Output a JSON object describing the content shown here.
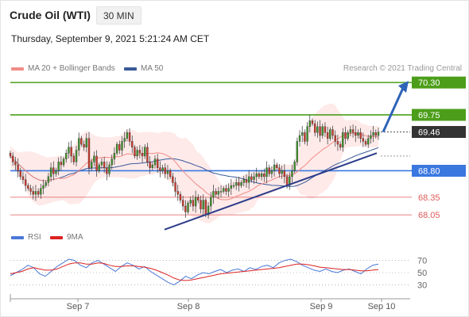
{
  "header": {
    "title": "Crude Oil (WTI)",
    "timeframe": "30 MIN",
    "datetime": "Thursday, September 9, 2021 5:21:24 AM CET"
  },
  "legend": {
    "ma20": {
      "label": "MA 20 + Bollinger Bands",
      "color": "#f08c86"
    },
    "ma50": {
      "label": "MA 50",
      "color": "#3a5a9a"
    },
    "rsi": {
      "label": "RSI",
      "color": "#4a78d8"
    },
    "ma9": {
      "label": "9MA",
      "color": "#dd2222"
    },
    "copyright": "Research © 2021 Trading Central"
  },
  "chart_data": {
    "type": "candlestick",
    "price_range": [
      67.85,
      70.45
    ],
    "x_ticks": [
      "Sep 7",
      "Sep 8",
      "Sep 9",
      "Sep 10"
    ],
    "levels": [
      {
        "value": 70.3,
        "label": "70.30",
        "kind": "target",
        "color": "#4c9e1a"
      },
      {
        "value": 69.75,
        "label": "69.75",
        "kind": "resistance",
        "color": "#4c9e1a"
      },
      {
        "value": 69.46,
        "label": "69.46",
        "kind": "last",
        "color": "#333333"
      },
      {
        "value": 68.8,
        "label": "68.80",
        "kind": "pivot",
        "color": "#3a78e0"
      },
      {
        "value": 68.35,
        "label": "68.35",
        "kind": "support",
        "color": "#e05a5a"
      },
      {
        "value": 68.05,
        "label": "68.05",
        "kind": "support",
        "color": "#e05a5a"
      }
    ],
    "trendline": [
      [
        0.0,
        67.8
      ],
      [
        1.0,
        69.1
      ]
    ],
    "arrow": [
      [
        1.0,
        69.46
      ],
      [
        1.15,
        70.3
      ]
    ],
    "closes": [
      69.05,
      68.95,
      68.9,
      68.8,
      68.7,
      68.65,
      68.55,
      68.5,
      68.45,
      68.4,
      68.45,
      68.4,
      68.5,
      68.55,
      68.6,
      68.7,
      68.85,
      68.75,
      68.8,
      68.95,
      68.9,
      69.0,
      69.1,
      69.2,
      69.05,
      68.95,
      69.15,
      69.35,
      69.25,
      69.2,
      69.35,
      68.85,
      68.95,
      69.05,
      68.8,
      68.9,
      68.95,
      68.85,
      68.75,
      68.9,
      69.0,
      69.1,
      69.25,
      69.15,
      69.3,
      69.35,
      69.45,
      69.3,
      69.2,
      69.05,
      69.15,
      69.1,
      69.05,
      69.2,
      68.95,
      68.85,
      68.9,
      69.0,
      68.85,
      68.8,
      68.85,
      68.75,
      68.8,
      68.7,
      68.6,
      68.45,
      68.4,
      68.3,
      68.2,
      68.1,
      68.25,
      68.3,
      68.2,
      68.35,
      68.3,
      68.15,
      68.3,
      68.05,
      68.2,
      68.35,
      68.45,
      68.4,
      68.45,
      68.45,
      68.5,
      68.45,
      68.5,
      68.55,
      68.55,
      68.6,
      68.55,
      68.6,
      68.65,
      68.6,
      68.7,
      68.65,
      68.7,
      68.75,
      68.7,
      68.75,
      68.7,
      68.85,
      68.75,
      68.8,
      68.9,
      68.85,
      68.75,
      68.8,
      68.7,
      68.55,
      68.7,
      68.8,
      68.95,
      69.3,
      69.4,
      69.45,
      69.3,
      69.55,
      69.65,
      69.6,
      69.45,
      69.55,
      69.4,
      69.55,
      69.45,
      69.35,
      69.5,
      69.4,
      69.3,
      69.25,
      69.2,
      69.45,
      69.35,
      69.45,
      69.5,
      69.45,
      69.4,
      69.45,
      69.35,
      69.3,
      69.25,
      69.35,
      69.4,
      69.45,
      69.4,
      69.46
    ],
    "rsi": {
      "range": [
        15,
        85
      ],
      "ticks": [
        70,
        50,
        30
      ],
      "rsi_values": [
        45,
        50,
        55,
        62,
        58,
        48,
        44,
        52,
        60,
        66,
        72,
        70,
        62,
        58,
        66,
        70,
        64,
        58,
        52,
        60,
        66,
        62,
        56,
        60,
        52,
        46,
        40,
        34,
        30,
        36,
        44,
        40,
        46,
        50,
        48,
        52,
        55,
        50,
        54,
        56,
        52,
        58,
        55,
        60,
        62,
        58,
        66,
        70,
        72,
        68,
        62,
        58,
        54,
        52,
        56,
        52,
        50,
        54,
        56,
        52,
        48,
        56,
        62,
        64
      ],
      "ma9_values": [
        48,
        50,
        52,
        56,
        58,
        56,
        54,
        54,
        56,
        60,
        64,
        66,
        66,
        64,
        64,
        66,
        65,
        62,
        60,
        60,
        61,
        61,
        60,
        59,
        57,
        54,
        50,
        46,
        41,
        38,
        37,
        38,
        40,
        42,
        44,
        46,
        48,
        49,
        50,
        51,
        52,
        53,
        54,
        55,
        56,
        57,
        58,
        60,
        62,
        64,
        64,
        63,
        61,
        59,
        58,
        57,
        56,
        55,
        55,
        54,
        53,
        53,
        54,
        55
      ]
    }
  }
}
